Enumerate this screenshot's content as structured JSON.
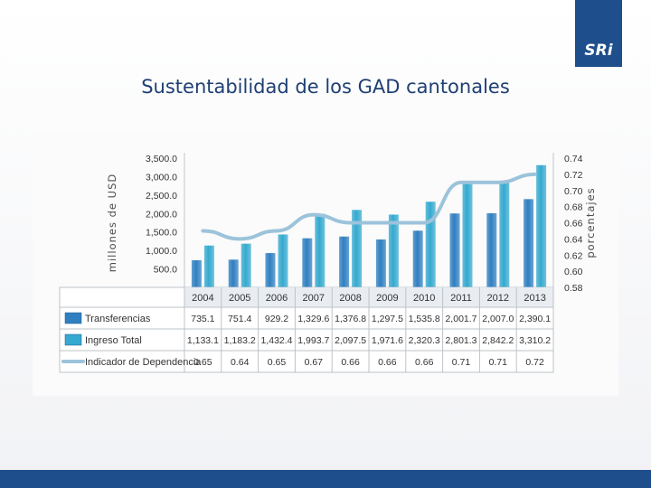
{
  "logo": {
    "text": "SRi"
  },
  "slide_title": "Sustentabilidad de los GAD cantonales",
  "chart_data": {
    "type": "bar",
    "categories": [
      "2004",
      "2005",
      "2006",
      "2007",
      "2008",
      "2009",
      "2010",
      "2011",
      "2012",
      "2013"
    ],
    "series": [
      {
        "name": "Transferencias",
        "type": "bar",
        "axis": "left",
        "color": "#2f7fc1",
        "values": [
          735.1,
          751.4,
          929.2,
          1329.6,
          1376.8,
          1297.5,
          1535.8,
          2001.7,
          2007.0,
          2390.1
        ],
        "labels": [
          "735.1",
          "751.4",
          "929.2",
          "1,329.6",
          "1,376.8",
          "1,297.5",
          "1,535.8",
          "2,001.7",
          "2,007.0",
          "2,390.1"
        ]
      },
      {
        "name": "Ingreso Total",
        "type": "bar",
        "axis": "left",
        "color": "#35a9cf",
        "values": [
          1133.1,
          1183.2,
          1432.4,
          1993.7,
          2097.5,
          1971.6,
          2320.3,
          2801.3,
          2842.2,
          3310.2
        ],
        "labels": [
          "1,133.1",
          "1,183.2",
          "1,432.4",
          "1,993.7",
          "2,097.5",
          "1,971.6",
          "2,320.3",
          "2,801.3",
          "2,842.2",
          "3,310.2"
        ]
      },
      {
        "name": "Indicador de Dependencia",
        "type": "line",
        "axis": "right",
        "color": "#9cc3da",
        "values": [
          0.65,
          0.64,
          0.65,
          0.67,
          0.66,
          0.66,
          0.66,
          0.71,
          0.71,
          0.72
        ],
        "labels": [
          "0.65",
          "0.64",
          "0.65",
          "0.67",
          "0.66",
          "0.66",
          "0.66",
          "0.71",
          "0.71",
          "0.72"
        ]
      }
    ],
    "ylabel": "millones de USD",
    "y2label": "porcentajes",
    "ylim": [
      0,
      3500
    ],
    "y2lim": [
      0.58,
      0.74
    ],
    "yticks": [
      "-",
      "500.0",
      "1,000.0",
      "1,500.0",
      "2,000.0",
      "2,500.0",
      "3,000.0",
      "3,500.0"
    ],
    "y2ticks": [
      "0.58",
      "0.60",
      "0.62",
      "0.64",
      "0.66",
      "0.68",
      "0.70",
      "0.72",
      "0.74"
    ],
    "legend": "table-below"
  }
}
